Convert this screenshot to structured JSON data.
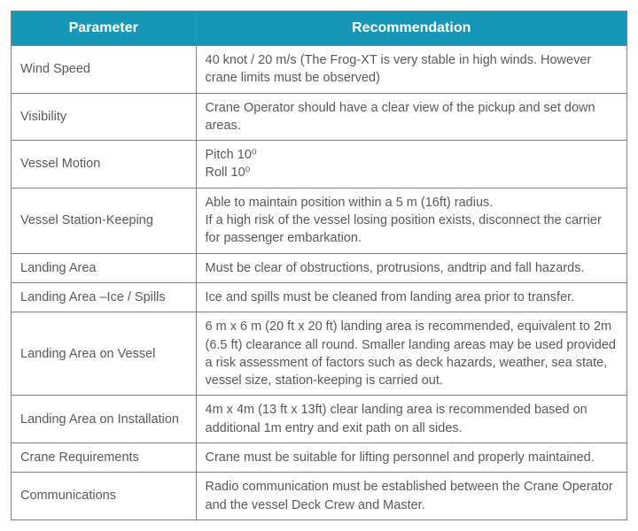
{
  "columns": [
    "Parameter",
    "Recommendation"
  ],
  "rows": [
    {
      "parameter": "Wind Speed",
      "recommendation": "40 knot / 20 m/s (The Frog-XT is very stable in high winds. However crane limits must be observed)"
    },
    {
      "parameter": "Visibility",
      "recommendation": "Crane Operator should have a clear view of the pickup and set down areas."
    },
    {
      "parameter": "Vessel Motion",
      "recommendation": "Pitch 10⁰\nRoll 10⁰"
    },
    {
      "parameter": "Vessel Station-Keeping",
      "recommendation": "Able to maintain position within a 5 m (16ft) radius.\nIf a high risk of the vessel losing position exists, disconnect the carrier for passenger embarkation."
    },
    {
      "parameter": "Landing Area",
      "recommendation": "Must be clear of obstructions, protrusions, andtrip and fall hazards."
    },
    {
      "parameter": "Landing Area –Ice / Spills",
      "recommendation": "Ice and spills must be cleaned from landing area prior to transfer."
    },
    {
      "parameter": "Landing Area on Vessel",
      "recommendation": "6 m x 6 m (20 ft x 20 ft) landing area is recommended, equivalent to 2m (6.5 ft) clearance all round. Smaller landing areas may be used provided a risk assessment of factors such as deck hazards, weather, sea state, vessel size, station-keeping is carried out."
    },
    {
      "parameter": "Landing Area on Installation",
      "recommendation": "4m x 4m (13 ft x 13ft) clear landing area is recommended based on additional 1m entry and exit path on all sides."
    },
    {
      "parameter": "Crane Requirements",
      "recommendation": "Crane must be suitable for lifting personnel and properly maintained."
    },
    {
      "parameter": "Communications",
      "recommendation": "Radio communication must be established between the Crane Operator and the vessel Deck Crew and Master."
    }
  ]
}
